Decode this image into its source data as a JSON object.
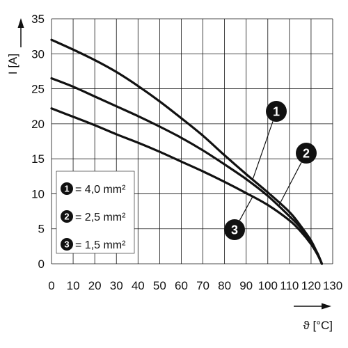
{
  "chart_data": {
    "type": "line",
    "xlabel": "ϑ [°C]",
    "ylabel": "I [A]",
    "xlim": [
      0,
      130
    ],
    "ylim": [
      0,
      35
    ],
    "xticks": [
      0,
      10,
      20,
      30,
      40,
      50,
      60,
      70,
      80,
      90,
      100,
      110,
      120,
      130
    ],
    "yticks": [
      0,
      5,
      10,
      15,
      20,
      25,
      30,
      35
    ],
    "grid": true,
    "legend_position": "bottom-left",
    "series": [
      {
        "name": "4,0 mm²",
        "marker": "1",
        "x": [
          0,
          10,
          20,
          30,
          40,
          50,
          60,
          70,
          80,
          90,
          100,
          110,
          115,
          120,
          123,
          125
        ],
        "y": [
          32.0,
          30.6,
          29.1,
          27.4,
          25.4,
          23.2,
          20.8,
          18.3,
          15.5,
          12.8,
          10.2,
          7.4,
          5.5,
          3.3,
          1.4,
          0.0
        ]
      },
      {
        "name": "2,5 mm²",
        "marker": "2",
        "x": [
          0,
          10,
          20,
          30,
          40,
          50,
          60,
          70,
          80,
          90,
          100,
          110,
          115,
          120,
          123,
          125
        ],
        "y": [
          26.5,
          25.3,
          23.9,
          22.5,
          21.1,
          19.6,
          18.0,
          16.2,
          14.2,
          12.1,
          9.7,
          6.8,
          5.2,
          3.1,
          1.5,
          0.0
        ]
      },
      {
        "name": "1,5 mm²",
        "marker": "3",
        "x": [
          0,
          10,
          20,
          30,
          40,
          50,
          60,
          70,
          80,
          90,
          100,
          110,
          115,
          120,
          123,
          125
        ],
        "y": [
          22.2,
          21.0,
          19.8,
          18.5,
          17.3,
          16.0,
          14.6,
          13.2,
          11.7,
          10.1,
          8.4,
          6.2,
          4.7,
          2.8,
          1.3,
          0.0
        ]
      }
    ]
  }
}
